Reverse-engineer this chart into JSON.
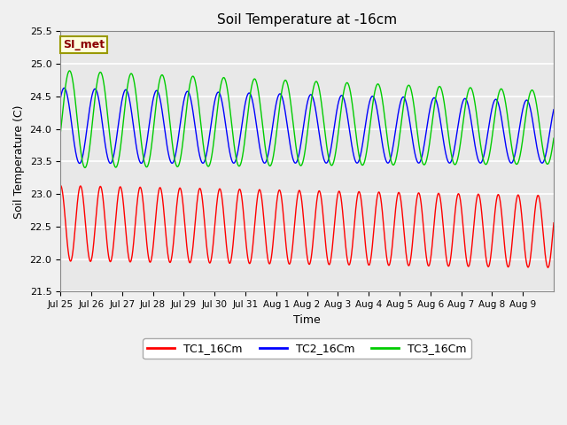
{
  "title": "Soil Temperature at -16cm",
  "xlabel": "Time",
  "ylabel": "Soil Temperature (C)",
  "ylim": [
    21.5,
    25.5
  ],
  "tick_labels": [
    "Jul 25",
    "Jul 26",
    "Jul 27",
    "Jul 28",
    "Jul 29",
    "Jul 30",
    "Jul 31",
    "Aug 1",
    "Aug 2",
    "Aug 3",
    "Aug 4",
    "Aug 5",
    "Aug 6",
    "Aug 7",
    "Aug 8",
    "Aug 9"
  ],
  "series": {
    "TC1_16Cm": {
      "color": "#ff0000",
      "base_mean": 22.55,
      "amplitude": 0.58,
      "freq_per_day": 1.55,
      "phase": 1.5,
      "trend": -0.008,
      "amp_decay": 0.003
    },
    "TC2_16Cm": {
      "color": "#0000ff",
      "base_mean": 24.05,
      "amplitude": 0.58,
      "freq_per_day": 1.0,
      "phase": 0.8,
      "trend": -0.006,
      "amp_decay": 0.012
    },
    "TC3_16Cm": {
      "color": "#00cc00",
      "base_mean": 24.15,
      "amplitude": 0.75,
      "freq_per_day": 1.0,
      "phase": -0.3,
      "trend": -0.008,
      "amp_decay": 0.018
    }
  },
  "annotation_text": "SI_met",
  "annotation_color": "#8b0000",
  "annotation_bg": "#ffffdd",
  "annotation_border": "#999900",
  "plot_bg": "#e8e8e8",
  "fig_bg": "#f0f0f0",
  "grid_color": "#ffffff",
  "legend_line_colors": [
    "#ff0000",
    "#0000ff",
    "#00cc00"
  ],
  "legend_labels": [
    "TC1_16Cm",
    "TC2_16Cm",
    "TC3_16Cm"
  ]
}
